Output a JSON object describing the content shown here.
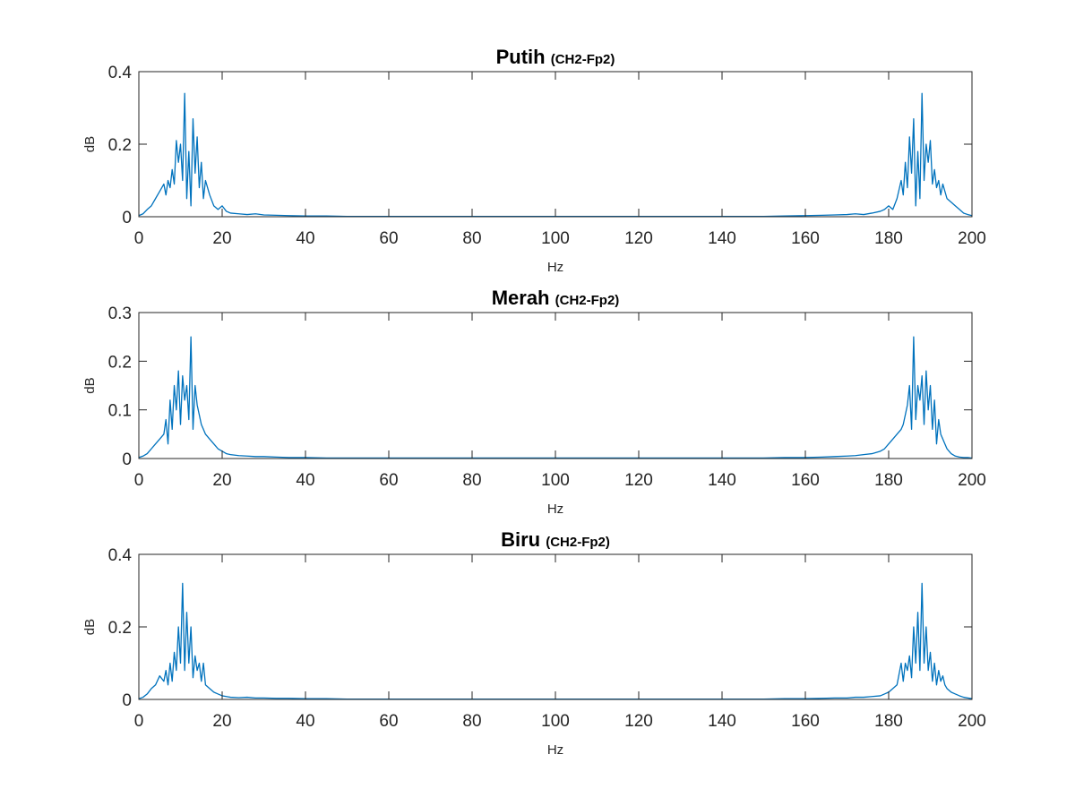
{
  "figure": {
    "background": "#ffffff",
    "line_color": "#0072BD",
    "axis_color": "#262626"
  },
  "chart_data": [
    {
      "type": "line",
      "title": "Putih",
      "subtitle": "(CH2-Fp2)",
      "xlabel": "Hz",
      "ylabel": "dB",
      "xlim": [
        0,
        200
      ],
      "ylim": [
        0,
        0.4
      ],
      "xticks": [
        0,
        20,
        40,
        60,
        80,
        100,
        120,
        140,
        160,
        180,
        200
      ],
      "yticks": [
        0,
        0.2,
        0.4
      ],
      "grid": false,
      "series": [
        {
          "x": [
            0,
            1,
            2,
            3,
            4,
            5,
            6,
            6.5,
            7,
            7.5,
            8,
            8.5,
            9,
            9.5,
            10,
            10.5,
            11,
            11.5,
            12,
            12.5,
            13,
            13.5,
            14,
            14.5,
            15,
            15.5,
            16,
            17,
            18,
            19,
            20,
            21,
            22,
            24,
            26,
            28,
            30,
            33,
            36,
            40,
            45,
            50,
            60,
            80,
            100,
            120,
            140,
            150,
            155,
            160,
            164,
            167,
            170,
            172,
            174,
            176,
            178,
            179,
            180,
            181,
            182,
            183,
            183.5,
            184,
            184.5,
            185,
            185.5,
            186,
            186.5,
            187,
            187.5,
            188,
            188.5,
            189,
            189.5,
            190,
            190.5,
            191,
            191.5,
            192,
            192.5,
            193,
            193.5,
            194,
            195,
            196,
            197,
            198,
            199,
            200
          ],
          "y": [
            0.003,
            0.008,
            0.02,
            0.03,
            0.05,
            0.07,
            0.09,
            0.06,
            0.1,
            0.08,
            0.13,
            0.09,
            0.21,
            0.15,
            0.2,
            0.1,
            0.34,
            0.05,
            0.18,
            0.03,
            0.27,
            0.12,
            0.22,
            0.08,
            0.15,
            0.05,
            0.1,
            0.06,
            0.03,
            0.02,
            0.03,
            0.015,
            0.01,
            0.008,
            0.006,
            0.008,
            0.005,
            0.004,
            0.003,
            0.002,
            0.002,
            0.001,
            0.001,
            0.001,
            0.001,
            0.001,
            0.001,
            0.001,
            0.002,
            0.003,
            0.004,
            0.005,
            0.006,
            0.008,
            0.006,
            0.01,
            0.015,
            0.02,
            0.03,
            0.02,
            0.05,
            0.1,
            0.06,
            0.15,
            0.08,
            0.22,
            0.12,
            0.27,
            0.03,
            0.18,
            0.05,
            0.34,
            0.1,
            0.2,
            0.15,
            0.21,
            0.09,
            0.13,
            0.08,
            0.1,
            0.06,
            0.09,
            0.07,
            0.05,
            0.04,
            0.03,
            0.02,
            0.01,
            0.006,
            0.003
          ]
        }
      ]
    },
    {
      "type": "line",
      "title": "Merah",
      "subtitle": "(CH2-Fp2)",
      "xlabel": "Hz",
      "ylabel": "dB",
      "xlim": [
        0,
        200
      ],
      "ylim": [
        0,
        0.3
      ],
      "xticks": [
        0,
        20,
        40,
        60,
        80,
        100,
        120,
        140,
        160,
        180,
        200
      ],
      "yticks": [
        0,
        0.1,
        0.2,
        0.3
      ],
      "grid": false,
      "series": [
        {
          "x": [
            0,
            1,
            2,
            3,
            4,
            5,
            6,
            6.5,
            7,
            7.5,
            8,
            8.5,
            9,
            9.5,
            10,
            10.5,
            11,
            11.5,
            12,
            12.5,
            13,
            13.5,
            14,
            14.5,
            15,
            15.5,
            16,
            17,
            18,
            19,
            20,
            21,
            22,
            24,
            26,
            28,
            30,
            33,
            36,
            40,
            45,
            50,
            60,
            80,
            100,
            120,
            140,
            150,
            155,
            160,
            164,
            167,
            170,
            172,
            174,
            176,
            178,
            179,
            180,
            181,
            182,
            183,
            183.5,
            184,
            184.5,
            185,
            185.5,
            186,
            186.5,
            187,
            187.5,
            188,
            188.5,
            189,
            189.5,
            190,
            190.5,
            191,
            191.5,
            192,
            192.5,
            193,
            193.5,
            194,
            195,
            196,
            197,
            198,
            199,
            200
          ],
          "y": [
            0.002,
            0.005,
            0.01,
            0.02,
            0.03,
            0.04,
            0.05,
            0.08,
            0.03,
            0.12,
            0.06,
            0.15,
            0.1,
            0.18,
            0.07,
            0.17,
            0.12,
            0.15,
            0.08,
            0.25,
            0.06,
            0.15,
            0.11,
            0.09,
            0.07,
            0.06,
            0.05,
            0.04,
            0.03,
            0.02,
            0.015,
            0.01,
            0.008,
            0.006,
            0.005,
            0.004,
            0.004,
            0.003,
            0.002,
            0.002,
            0.001,
            0.001,
            0.001,
            0.001,
            0.001,
            0.001,
            0.001,
            0.001,
            0.002,
            0.002,
            0.003,
            0.004,
            0.005,
            0.006,
            0.008,
            0.01,
            0.015,
            0.02,
            0.03,
            0.04,
            0.05,
            0.06,
            0.07,
            0.09,
            0.11,
            0.15,
            0.06,
            0.25,
            0.08,
            0.15,
            0.12,
            0.17,
            0.07,
            0.18,
            0.1,
            0.15,
            0.06,
            0.12,
            0.03,
            0.08,
            0.05,
            0.04,
            0.03,
            0.02,
            0.01,
            0.005,
            0.003,
            0.002,
            0.002,
            0.001
          ]
        }
      ]
    },
    {
      "type": "line",
      "title": "Biru",
      "subtitle": "(CH2-Fp2)",
      "xlabel": "Hz",
      "ylabel": "dB",
      "xlim": [
        0,
        200
      ],
      "ylim": [
        0,
        0.4
      ],
      "xticks": [
        0,
        20,
        40,
        60,
        80,
        100,
        120,
        140,
        160,
        180,
        200
      ],
      "yticks": [
        0,
        0.2,
        0.4
      ],
      "grid": false,
      "series": [
        {
          "x": [
            0,
            1,
            2,
            3,
            4,
            5,
            6,
            6.5,
            7,
            7.5,
            8,
            8.5,
            9,
            9.5,
            10,
            10.5,
            11,
            11.5,
            12,
            12.5,
            13,
            13.5,
            14,
            14.5,
            15,
            15.5,
            16,
            17,
            18,
            19,
            20,
            21,
            22,
            24,
            26,
            28,
            30,
            33,
            36,
            40,
            45,
            50,
            60,
            80,
            100,
            120,
            140,
            150,
            155,
            160,
            164,
            167,
            170,
            172,
            174,
            176,
            178,
            179,
            180,
            181,
            182,
            183,
            183.5,
            184,
            184.5,
            185,
            185.5,
            186,
            186.5,
            187,
            187.5,
            188,
            188.5,
            189,
            189.5,
            190,
            190.5,
            191,
            191.5,
            192,
            192.5,
            193,
            193.5,
            194,
            195,
            196,
            197,
            198,
            199,
            200
          ],
          "y": [
            0.002,
            0.006,
            0.015,
            0.03,
            0.04,
            0.065,
            0.05,
            0.08,
            0.04,
            0.1,
            0.05,
            0.13,
            0.08,
            0.2,
            0.1,
            0.32,
            0.08,
            0.24,
            0.1,
            0.2,
            0.06,
            0.12,
            0.08,
            0.1,
            0.05,
            0.1,
            0.04,
            0.03,
            0.02,
            0.015,
            0.01,
            0.008,
            0.006,
            0.005,
            0.006,
            0.004,
            0.004,
            0.003,
            0.003,
            0.002,
            0.002,
            0.001,
            0.001,
            0.001,
            0.001,
            0.001,
            0.001,
            0.001,
            0.002,
            0.002,
            0.003,
            0.004,
            0.004,
            0.006,
            0.006,
            0.008,
            0.01,
            0.015,
            0.02,
            0.03,
            0.04,
            0.1,
            0.05,
            0.1,
            0.08,
            0.12,
            0.06,
            0.2,
            0.1,
            0.24,
            0.08,
            0.32,
            0.1,
            0.2,
            0.08,
            0.13,
            0.05,
            0.1,
            0.04,
            0.08,
            0.05,
            0.065,
            0.04,
            0.03,
            0.02,
            0.015,
            0.01,
            0.006,
            0.004,
            0.002
          ]
        }
      ]
    }
  ]
}
